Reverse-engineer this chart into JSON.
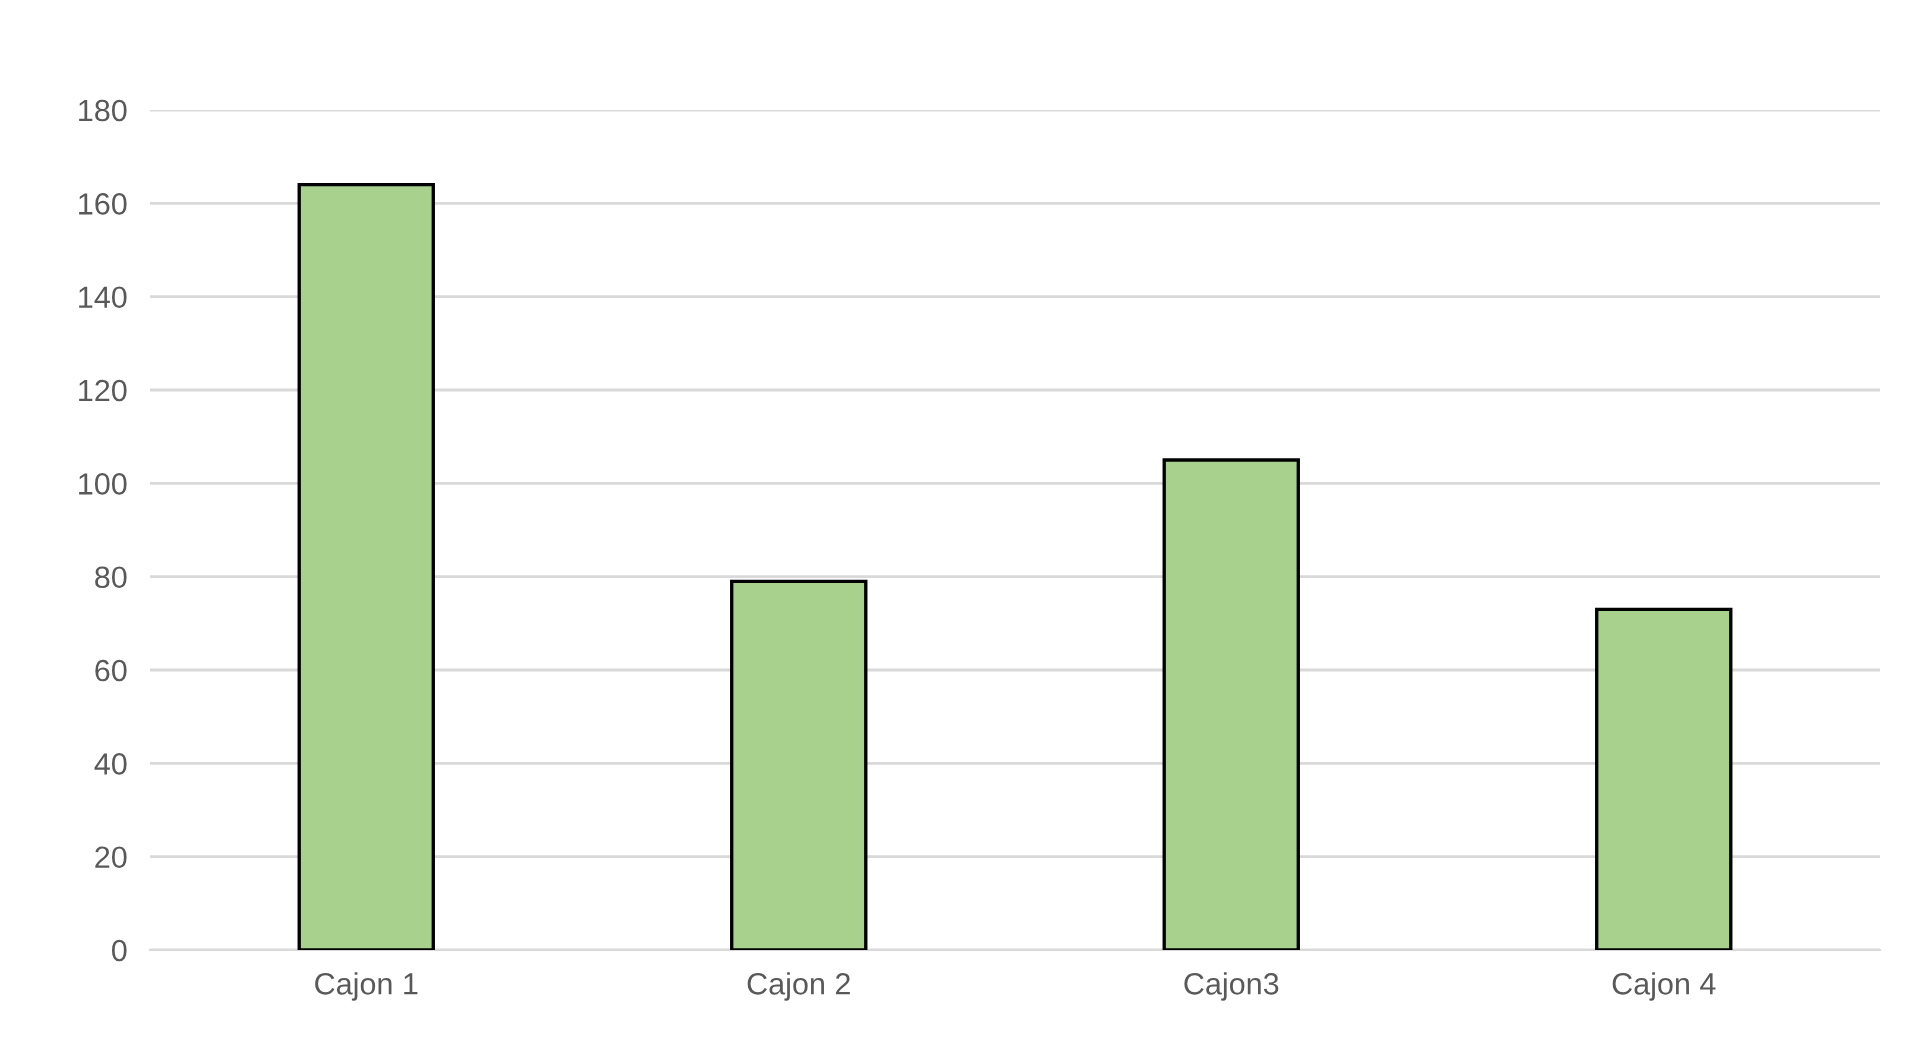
{
  "chart_data": {
    "type": "bar",
    "categories": [
      "Cajon 1",
      "Cajon 2",
      "Cajon3",
      "Cajon 4"
    ],
    "values": [
      164,
      79,
      105,
      73
    ],
    "color": "#a9d18e",
    "ylim": [
      0,
      180
    ],
    "yticks": [
      0,
      20,
      40,
      60,
      80,
      100,
      120,
      140,
      160,
      180
    ],
    "grid": "y",
    "legend": false
  }
}
